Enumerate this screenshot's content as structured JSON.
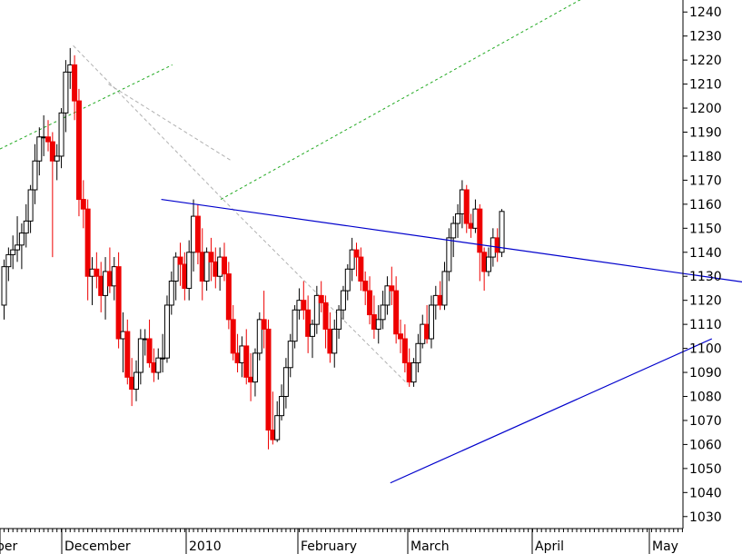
{
  "chart_data": {
    "type": "candlestick",
    "title": "",
    "xlabel": "",
    "ylabel": "",
    "ylim": [
      1025,
      1245
    ],
    "grid": false,
    "colors": {
      "up_body": "#ffffff",
      "up_outline": "#000000",
      "down_body": "#ee0000",
      "down_wick": "#ee0000",
      "trendline": "#0000cc",
      "projection": "#22aa22",
      "fan": "#b0b0b0"
    },
    "y_ticks": [
      1030,
      1040,
      1050,
      1060,
      1070,
      1080,
      1090,
      1100,
      1110,
      1120,
      1130,
      1140,
      1150,
      1160,
      1170,
      1180,
      1190,
      1200,
      1210,
      1220,
      1230,
      1240
    ],
    "x_labels": [
      "ber",
      "December",
      "2010",
      "February",
      "March",
      "April",
      "May"
    ],
    "trendlines": [
      {
        "kind": "resistance",
        "from": [
          36,
          1162
        ],
        "to": [
          182,
          1124
        ]
      },
      {
        "kind": "support",
        "from": [
          88,
          1044
        ],
        "to": [
          161,
          1104
        ]
      }
    ],
    "candles": [
      [
        1118,
        1137,
        1112,
        1134
      ],
      [
        1134,
        1142,
        1128,
        1139
      ],
      [
        1139,
        1147,
        1133,
        1141
      ],
      [
        1141,
        1155,
        1136,
        1143
      ],
      [
        1143,
        1152,
        1133,
        1148
      ],
      [
        1148,
        1160,
        1142,
        1153
      ],
      [
        1153,
        1168,
        1148,
        1166
      ],
      [
        1166,
        1185,
        1160,
        1178
      ],
      [
        1178,
        1192,
        1172,
        1188
      ],
      [
        1188,
        1197,
        1180,
        1188
      ],
      [
        1188,
        1195,
        1182,
        1186
      ],
      [
        1186,
        1190,
        1138,
        1178
      ],
      [
        1178,
        1185,
        1170,
        1180
      ],
      [
        1180,
        1200,
        1175,
        1198
      ],
      [
        1198,
        1220,
        1190,
        1215
      ],
      [
        1215,
        1225,
        1208,
        1218
      ],
      [
        1218,
        1222,
        1195,
        1203
      ],
      [
        1203,
        1208,
        1155,
        1162
      ],
      [
        1162,
        1170,
        1150,
        1158
      ],
      [
        1158,
        1162,
        1120,
        1130
      ],
      [
        1130,
        1138,
        1118,
        1133
      ],
      [
        1133,
        1140,
        1125,
        1130
      ],
      [
        1130,
        1136,
        1115,
        1122
      ],
      [
        1122,
        1138,
        1112,
        1132
      ],
      [
        1132,
        1142,
        1123,
        1126
      ],
      [
        1126,
        1138,
        1120,
        1134
      ],
      [
        1134,
        1140,
        1100,
        1104
      ],
      [
        1104,
        1115,
        1090,
        1107
      ],
      [
        1107,
        1112,
        1085,
        1088
      ],
      [
        1088,
        1096,
        1076,
        1083
      ],
      [
        1083,
        1095,
        1078,
        1090
      ],
      [
        1090,
        1108,
        1085,
        1104
      ],
      [
        1104,
        1108,
        1097,
        1104
      ],
      [
        1104,
        1112,
        1092,
        1094
      ],
      [
        1094,
        1100,
        1086,
        1090
      ],
      [
        1090,
        1100,
        1087,
        1096
      ],
      [
        1096,
        1106,
        1090,
        1096
      ],
      [
        1096,
        1122,
        1094,
        1118
      ],
      [
        1118,
        1132,
        1114,
        1128
      ],
      [
        1128,
        1140,
        1120,
        1138
      ],
      [
        1138,
        1144,
        1126,
        1135
      ],
      [
        1135,
        1140,
        1120,
        1125
      ],
      [
        1125,
        1145,
        1120,
        1140
      ],
      [
        1140,
        1162,
        1132,
        1155
      ],
      [
        1155,
        1160,
        1135,
        1140
      ],
      [
        1140,
        1150,
        1120,
        1128
      ],
      [
        1128,
        1142,
        1124,
        1140
      ],
      [
        1140,
        1146,
        1128,
        1136
      ],
      [
        1136,
        1142,
        1125,
        1130
      ],
      [
        1130,
        1142,
        1124,
        1138
      ],
      [
        1138,
        1144,
        1128,
        1131
      ],
      [
        1131,
        1136,
        1108,
        1112
      ],
      [
        1112,
        1118,
        1095,
        1098
      ],
      [
        1098,
        1106,
        1090,
        1094
      ],
      [
        1094,
        1105,
        1088,
        1101
      ],
      [
        1101,
        1108,
        1085,
        1088
      ],
      [
        1088,
        1098,
        1078,
        1086
      ],
      [
        1086,
        1100,
        1080,
        1098
      ],
      [
        1098,
        1115,
        1095,
        1112
      ],
      [
        1112,
        1124,
        1100,
        1108
      ],
      [
        1108,
        1112,
        1058,
        1066
      ],
      [
        1066,
        1082,
        1060,
        1062
      ],
      [
        1062,
        1078,
        1061,
        1072
      ],
      [
        1072,
        1085,
        1070,
        1080
      ],
      [
        1080,
        1096,
        1075,
        1092
      ],
      [
        1092,
        1106,
        1088,
        1103
      ],
      [
        1103,
        1118,
        1100,
        1116
      ],
      [
        1116,
        1125,
        1112,
        1120
      ],
      [
        1120,
        1128,
        1112,
        1116
      ],
      [
        1116,
        1122,
        1098,
        1105
      ],
      [
        1105,
        1112,
        1096,
        1110
      ],
      [
        1110,
        1126,
        1106,
        1122
      ],
      [
        1122,
        1128,
        1115,
        1119
      ],
      [
        1119,
        1122,
        1100,
        1108
      ],
      [
        1108,
        1115,
        1094,
        1098
      ],
      [
        1098,
        1112,
        1092,
        1108
      ],
      [
        1108,
        1118,
        1104,
        1116
      ],
      [
        1116,
        1126,
        1112,
        1124
      ],
      [
        1124,
        1135,
        1120,
        1133
      ],
      [
        1133,
        1146,
        1128,
        1141
      ],
      [
        1141,
        1144,
        1130,
        1138
      ],
      [
        1138,
        1142,
        1124,
        1128
      ],
      [
        1128,
        1132,
        1118,
        1124
      ],
      [
        1124,
        1130,
        1110,
        1114
      ],
      [
        1114,
        1122,
        1104,
        1108
      ],
      [
        1108,
        1118,
        1102,
        1112
      ],
      [
        1112,
        1124,
        1108,
        1118
      ],
      [
        1118,
        1130,
        1114,
        1126
      ],
      [
        1126,
        1134,
        1118,
        1124
      ],
      [
        1124,
        1130,
        1102,
        1106
      ],
      [
        1106,
        1112,
        1098,
        1104
      ],
      [
        1104,
        1110,
        1090,
        1094
      ],
      [
        1094,
        1100,
        1084,
        1086
      ],
      [
        1086,
        1096,
        1084,
        1094
      ],
      [
        1094,
        1106,
        1090,
        1102
      ],
      [
        1102,
        1114,
        1100,
        1110
      ],
      [
        1110,
        1118,
        1102,
        1104
      ],
      [
        1104,
        1122,
        1100,
        1118
      ],
      [
        1118,
        1126,
        1112,
        1122
      ],
      [
        1122,
        1128,
        1116,
        1118
      ],
      [
        1118,
        1136,
        1116,
        1132
      ],
      [
        1132,
        1150,
        1128,
        1146
      ],
      [
        1146,
        1155,
        1138,
        1152
      ],
      [
        1152,
        1160,
        1146,
        1156
      ],
      [
        1156,
        1170,
        1150,
        1166
      ],
      [
        1166,
        1168,
        1148,
        1152
      ],
      [
        1152,
        1156,
        1146,
        1150
      ],
      [
        1150,
        1162,
        1148,
        1158
      ],
      [
        1158,
        1160,
        1128,
        1140
      ],
      [
        1140,
        1142,
        1124,
        1132
      ],
      [
        1132,
        1142,
        1130,
        1138
      ],
      [
        1138,
        1150,
        1134,
        1146
      ],
      [
        1146,
        1150,
        1136,
        1140
      ],
      [
        1140,
        1158,
        1138,
        1157
      ]
    ]
  }
}
